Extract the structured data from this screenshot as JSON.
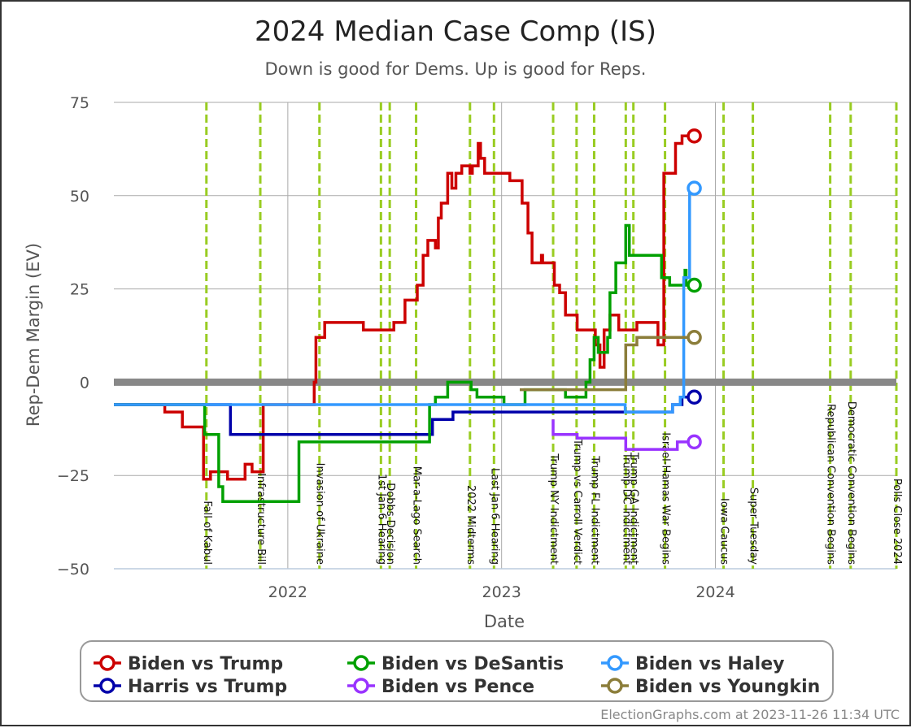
{
  "chart_data": {
    "type": "line",
    "title": "2024 Median Case Comp (IS)",
    "subtitle": "Down is good for Dems. Up is good for Reps.",
    "xlabel": "Date",
    "ylabel": "Rep-Dem Margin (EV)",
    "credit": "ElectionGraphs.com at 2023-11-26 11:34 UTC",
    "xlim": [
      "2021-03-10",
      "2024-11-05"
    ],
    "ylim": [
      -50,
      75
    ],
    "y_ticks": [
      75,
      50,
      25,
      0,
      -25,
      -50
    ],
    "y_tick_labels": [
      "75",
      "50",
      "25",
      "0",
      "−25",
      "−50"
    ],
    "x_ticks": [
      "2022-01-01",
      "2023-01-01",
      "2024-01-01"
    ],
    "x_tick_labels": [
      "2022",
      "2023",
      "2024"
    ],
    "grid": true,
    "legend_position": "bottom",
    "events": [
      {
        "date": "2021-08-15",
        "label": "Fall of Kabul"
      },
      {
        "date": "2021-11-15",
        "label": "Infrastructure Bill"
      },
      {
        "date": "2022-02-24",
        "label": "Invasion of Ukraine"
      },
      {
        "date": "2022-06-09",
        "label": "1st Jan 6 Hearing"
      },
      {
        "date": "2022-06-24",
        "label": "Dobbs Decision"
      },
      {
        "date": "2022-08-08",
        "label": "Mar-a-Lago Search"
      },
      {
        "date": "2022-11-08",
        "label": "2022 Midterms"
      },
      {
        "date": "2022-12-19",
        "label": "Last Jan 6 Hearing"
      },
      {
        "date": "2023-03-30",
        "label": "Trump NY Indictment"
      },
      {
        "date": "2023-05-09",
        "label": "Trump vs Carroll Verdict"
      },
      {
        "date": "2023-06-08",
        "label": "Trump FL Indictment"
      },
      {
        "date": "2023-08-01",
        "label": "Trump DC Indictment"
      },
      {
        "date": "2023-08-14",
        "label": "Trump GA Indictment"
      },
      {
        "date": "2023-10-07",
        "label": "Israel-Hamas War Begins"
      },
      {
        "date": "2024-01-15",
        "label": "Iowa Caucus"
      },
      {
        "date": "2024-03-05",
        "label": "Super Tuesday"
      },
      {
        "date": "2024-07-15",
        "label": "Republican Convention Begins"
      },
      {
        "date": "2024-08-19",
        "label": "Democratic Convention Begins"
      },
      {
        "date": "2024-11-05",
        "label": "Polls Close 2024"
      }
    ],
    "series": [
      {
        "name": "Biden vs Trump",
        "color": "#cc0000",
        "points": [
          [
            "2021-03-10",
            -6
          ],
          [
            "2021-06-05",
            -6
          ],
          [
            "2021-06-05",
            -8
          ],
          [
            "2021-07-05",
            -8
          ],
          [
            "2021-07-05",
            -12
          ],
          [
            "2021-08-10",
            -12
          ],
          [
            "2021-08-10",
            -26
          ],
          [
            "2021-08-22",
            -26
          ],
          [
            "2021-08-22",
            -24
          ],
          [
            "2021-09-20",
            -24
          ],
          [
            "2021-09-20",
            -26
          ],
          [
            "2021-10-20",
            -26
          ],
          [
            "2021-10-20",
            -22
          ],
          [
            "2021-11-01",
            -22
          ],
          [
            "2021-11-01",
            -24
          ],
          [
            "2021-11-20",
            -24
          ],
          [
            "2021-11-20",
            -6
          ],
          [
            "2022-02-15",
            -6
          ],
          [
            "2022-02-15",
            0
          ],
          [
            "2022-02-18",
            0
          ],
          [
            "2022-02-18",
            12
          ],
          [
            "2022-03-05",
            12
          ],
          [
            "2022-03-05",
            16
          ],
          [
            "2022-05-10",
            16
          ],
          [
            "2022-05-10",
            14
          ],
          [
            "2022-07-01",
            14
          ],
          [
            "2022-07-01",
            16
          ],
          [
            "2022-07-20",
            16
          ],
          [
            "2022-07-20",
            22
          ],
          [
            "2022-08-10",
            22
          ],
          [
            "2022-08-10",
            26
          ],
          [
            "2022-08-20",
            26
          ],
          [
            "2022-08-20",
            34
          ],
          [
            "2022-08-28",
            34
          ],
          [
            "2022-08-28",
            38
          ],
          [
            "2022-09-10",
            38
          ],
          [
            "2022-09-10",
            36
          ],
          [
            "2022-09-15",
            36
          ],
          [
            "2022-09-15",
            44
          ],
          [
            "2022-09-20",
            44
          ],
          [
            "2022-09-20",
            48
          ],
          [
            "2022-10-01",
            48
          ],
          [
            "2022-10-01",
            56
          ],
          [
            "2022-10-08",
            56
          ],
          [
            "2022-10-08",
            52
          ],
          [
            "2022-10-15",
            52
          ],
          [
            "2022-10-15",
            56
          ],
          [
            "2022-10-25",
            56
          ],
          [
            "2022-10-25",
            58
          ],
          [
            "2022-11-08",
            58
          ],
          [
            "2022-11-08",
            56
          ],
          [
            "2022-11-12",
            56
          ],
          [
            "2022-11-12",
            58
          ],
          [
            "2022-11-22",
            58
          ],
          [
            "2022-11-22",
            64
          ],
          [
            "2022-11-26",
            64
          ],
          [
            "2022-11-26",
            60
          ],
          [
            "2022-12-03",
            60
          ],
          [
            "2022-12-03",
            56
          ],
          [
            "2023-01-15",
            56
          ],
          [
            "2023-01-15",
            54
          ],
          [
            "2023-02-05",
            54
          ],
          [
            "2023-02-05",
            48
          ],
          [
            "2023-02-15",
            48
          ],
          [
            "2023-02-15",
            40
          ],
          [
            "2023-02-22",
            40
          ],
          [
            "2023-02-22",
            32
          ],
          [
            "2023-03-10",
            32
          ],
          [
            "2023-03-10",
            34
          ],
          [
            "2023-03-12",
            34
          ],
          [
            "2023-03-12",
            32
          ],
          [
            "2023-04-01",
            32
          ],
          [
            "2023-04-01",
            26
          ],
          [
            "2023-04-10",
            26
          ],
          [
            "2023-04-10",
            24
          ],
          [
            "2023-04-20",
            24
          ],
          [
            "2023-04-20",
            18
          ],
          [
            "2023-05-10",
            18
          ],
          [
            "2023-05-10",
            14
          ],
          [
            "2023-06-10",
            14
          ],
          [
            "2023-06-10",
            10
          ],
          [
            "2023-06-18",
            10
          ],
          [
            "2023-06-18",
            4
          ],
          [
            "2023-06-25",
            4
          ],
          [
            "2023-06-25",
            14
          ],
          [
            "2023-07-05",
            14
          ],
          [
            "2023-07-05",
            18
          ],
          [
            "2023-07-20",
            18
          ],
          [
            "2023-07-20",
            14
          ],
          [
            "2023-08-20",
            14
          ],
          [
            "2023-08-20",
            16
          ],
          [
            "2023-09-25",
            16
          ],
          [
            "2023-09-25",
            10
          ],
          [
            "2023-10-05",
            10
          ],
          [
            "2023-10-05",
            56
          ],
          [
            "2023-10-25",
            56
          ],
          [
            "2023-10-25",
            64
          ],
          [
            "2023-11-05",
            64
          ],
          [
            "2023-11-05",
            66
          ],
          [
            "2023-11-26",
            66
          ]
        ]
      },
      {
        "name": "Harris vs Trump",
        "color": "#0000aa",
        "points": [
          [
            "2021-03-10",
            -6
          ],
          [
            "2021-09-25",
            -6
          ],
          [
            "2021-09-25",
            -14
          ],
          [
            "2022-09-05",
            -14
          ],
          [
            "2022-09-05",
            -10
          ],
          [
            "2022-10-10",
            -10
          ],
          [
            "2022-10-10",
            -8
          ],
          [
            "2023-10-20",
            -8
          ],
          [
            "2023-10-20",
            -6
          ],
          [
            "2023-11-05",
            -6
          ],
          [
            "2023-11-05",
            -4
          ],
          [
            "2023-11-26",
            -4
          ]
        ]
      },
      {
        "name": "Biden vs DeSantis",
        "color": "#00a000",
        "points": [
          [
            "2021-03-10",
            -6
          ],
          [
            "2021-08-12",
            -6
          ],
          [
            "2021-08-12",
            -14
          ],
          [
            "2021-09-05",
            -14
          ],
          [
            "2021-09-05",
            -28
          ],
          [
            "2021-09-12",
            -28
          ],
          [
            "2021-09-12",
            -32
          ],
          [
            "2022-01-20",
            -32
          ],
          [
            "2022-01-20",
            -16
          ],
          [
            "2022-08-31",
            -16
          ],
          [
            "2022-08-31",
            -6
          ],
          [
            "2022-09-10",
            -6
          ],
          [
            "2022-09-10",
            -4
          ],
          [
            "2022-10-01",
            -4
          ],
          [
            "2022-10-01",
            0
          ],
          [
            "2022-11-10",
            0
          ],
          [
            "2022-11-10",
            -2
          ],
          [
            "2022-11-20",
            -2
          ],
          [
            "2022-11-20",
            -4
          ],
          [
            "2023-01-05",
            -4
          ],
          [
            "2023-01-05",
            -6
          ],
          [
            "2023-02-10",
            -6
          ],
          [
            "2023-02-10",
            -2
          ],
          [
            "2023-04-20",
            -2
          ],
          [
            "2023-04-20",
            -4
          ],
          [
            "2023-05-25",
            -4
          ],
          [
            "2023-05-25",
            0
          ],
          [
            "2023-06-01",
            0
          ],
          [
            "2023-06-01",
            6
          ],
          [
            "2023-06-08",
            6
          ],
          [
            "2023-06-08",
            12
          ],
          [
            "2023-06-15",
            12
          ],
          [
            "2023-06-15",
            8
          ],
          [
            "2023-07-01",
            8
          ],
          [
            "2023-07-01",
            12
          ],
          [
            "2023-07-05",
            12
          ],
          [
            "2023-07-05",
            24
          ],
          [
            "2023-07-15",
            24
          ],
          [
            "2023-07-15",
            32
          ],
          [
            "2023-08-01",
            32
          ],
          [
            "2023-08-01",
            42
          ],
          [
            "2023-08-07",
            42
          ],
          [
            "2023-08-07",
            34
          ],
          [
            "2023-10-01",
            34
          ],
          [
            "2023-10-01",
            28
          ],
          [
            "2023-10-15",
            28
          ],
          [
            "2023-10-15",
            26
          ],
          [
            "2023-11-10",
            26
          ],
          [
            "2023-11-10",
            30
          ],
          [
            "2023-11-12",
            30
          ],
          [
            "2023-11-12",
            26
          ],
          [
            "2023-11-26",
            26
          ]
        ]
      },
      {
        "name": "Biden vs Pence",
        "color": "#9933ff",
        "points": [
          [
            "2023-03-30",
            -10
          ],
          [
            "2023-03-30",
            -14
          ],
          [
            "2023-05-10",
            -14
          ],
          [
            "2023-05-10",
            -15
          ],
          [
            "2023-08-01",
            -15
          ],
          [
            "2023-08-01",
            -18
          ],
          [
            "2023-10-28",
            -18
          ],
          [
            "2023-10-28",
            -16
          ],
          [
            "2023-11-26",
            -16
          ]
        ]
      },
      {
        "name": "Biden vs Haley",
        "color": "#3399ff",
        "points": [
          [
            "2021-03-10",
            -6
          ],
          [
            "2023-07-31",
            -6
          ],
          [
            "2023-07-31",
            -8
          ],
          [
            "2023-10-20",
            -8
          ],
          [
            "2023-10-20",
            -6
          ],
          [
            "2023-11-02",
            -6
          ],
          [
            "2023-11-02",
            -4
          ],
          [
            "2023-11-08",
            -4
          ],
          [
            "2023-11-08",
            28
          ],
          [
            "2023-11-18",
            28
          ],
          [
            "2023-11-18",
            52
          ],
          [
            "2023-11-26",
            52
          ]
        ]
      },
      {
        "name": "Biden vs Youngkin",
        "color": "#8b7d3a",
        "points": [
          [
            "2023-02-01",
            -2
          ],
          [
            "2023-08-01",
            -2
          ],
          [
            "2023-08-01",
            10
          ],
          [
            "2023-08-20",
            10
          ],
          [
            "2023-08-20",
            12
          ],
          [
            "2023-11-26",
            12
          ]
        ]
      }
    ]
  }
}
